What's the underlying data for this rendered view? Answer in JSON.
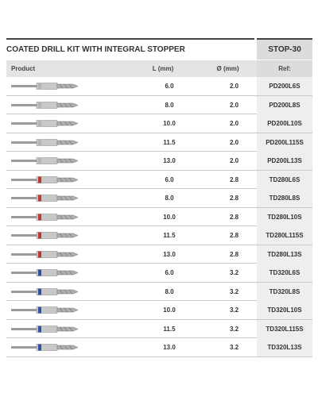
{
  "header": {
    "title": "COATED DRILL KIT WITH INTEGRAL STOPPER",
    "code": "STOP-30"
  },
  "table": {
    "columns": [
      "Product",
      "L (mm)",
      "Ø (mm)",
      "Ref:"
    ],
    "rows": [
      [
        "6.0",
        "2.0",
        "PD200L6S"
      ],
      [
        "8.0",
        "2.0",
        "PD200L8S"
      ],
      [
        "10.0",
        "2.0",
        "PD200L10S"
      ],
      [
        "11.5",
        "2.0",
        "PD200L115S"
      ],
      [
        "13.0",
        "2.0",
        "PD200L13S"
      ],
      [
        "6.0",
        "2.8",
        "TD280L6S"
      ],
      [
        "8.0",
        "2.8",
        "TD280L8S"
      ],
      [
        "10.0",
        "2.8",
        "TD280L10S"
      ],
      [
        "11.5",
        "2.8",
        "TD280L115S"
      ],
      [
        "13.0",
        "2.8",
        "TD280L13S"
      ],
      [
        "6.0",
        "3.2",
        "TD320L6S"
      ],
      [
        "8.0",
        "3.2",
        "TD320L8S"
      ],
      [
        "10.0",
        "3.2",
        "TD320L10S"
      ],
      [
        "11.5",
        "3.2",
        "TD320L115S"
      ],
      [
        "13.0",
        "3.2",
        "TD320L13S"
      ]
    ]
  }
}
